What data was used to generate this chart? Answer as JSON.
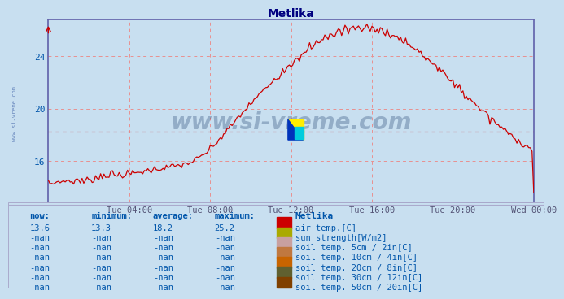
{
  "title": "Metlika",
  "title_color": "#000080",
  "bg_color": "#c8dff0",
  "plot_bg_color": "#c8dff0",
  "line_color": "#cc0000",
  "axis_color": "#6060aa",
  "grid_color": "#e89090",
  "text_color": "#0055aa",
  "yticks": [
    16,
    20,
    24
  ],
  "ymin": 12.8,
  "ymax": 26.8,
  "avg_line_y": 18.2,
  "avg_line_color": "#cc0000",
  "xtick_labels": [
    "Tue 04:00",
    "Tue 08:00",
    "Tue 12:00",
    "Tue 16:00",
    "Tue 20:00",
    "Wed 00:00"
  ],
  "watermark": "www.si-vreme.com",
  "watermark_color": "#1a3a6b",
  "watermark_alpha": 0.3,
  "side_label": "www.si-vreme.com",
  "legend_title": "Metlika",
  "legend_items": [
    {
      "label": "air temp.[C]",
      "color": "#cc0000"
    },
    {
      "label": "sun strength[W/m2]",
      "color": "#aaaa00"
    },
    {
      "label": "soil temp. 5cm / 2in[C]",
      "color": "#c8a0a0"
    },
    {
      "label": "soil temp. 10cm / 4in[C]",
      "color": "#c07840"
    },
    {
      "label": "soil temp. 20cm / 8in[C]",
      "color": "#c86400"
    },
    {
      "label": "soil temp. 30cm / 12in[C]",
      "color": "#606030"
    },
    {
      "label": "soil temp. 50cm / 20in[C]",
      "color": "#804000"
    }
  ],
  "table_headers": [
    "now:",
    "minimum:",
    "average:",
    "maximum:"
  ],
  "table_rows": [
    [
      "13.6",
      "13.3",
      "18.2",
      "25.2"
    ],
    [
      "-nan",
      "-nan",
      "-nan",
      "-nan"
    ],
    [
      "-nan",
      "-nan",
      "-nan",
      "-nan"
    ],
    [
      "-nan",
      "-nan",
      "-nan",
      "-nan"
    ],
    [
      "-nan",
      "-nan",
      "-nan",
      "-nan"
    ],
    [
      "-nan",
      "-nan",
      "-nan",
      "-nan"
    ],
    [
      "-nan",
      "-nan",
      "-nan",
      "-nan"
    ]
  ]
}
